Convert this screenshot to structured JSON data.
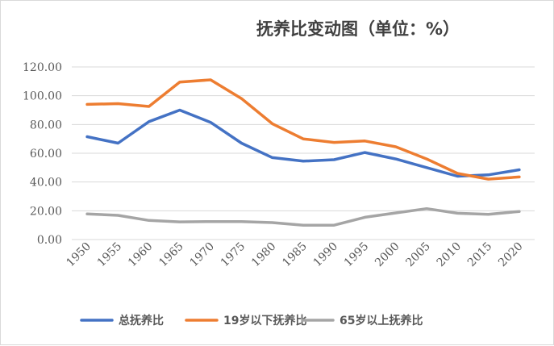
{
  "chart_data": {
    "type": "line",
    "title": "抚养比变动图（单位：%）",
    "categories": [
      "1950",
      "1955",
      "1960",
      "1965",
      "1970",
      "1975",
      "1980",
      "1985",
      "1990",
      "1995",
      "2000",
      "2005",
      "2010",
      "2015",
      "2020"
    ],
    "ylim": [
      0,
      120
    ],
    "yticks": [
      "0.00",
      "20.00",
      "40.00",
      "60.00",
      "80.00",
      "100.00",
      "120.00"
    ],
    "grid": true,
    "legend_position": "bottom",
    "series": [
      {
        "name": "总抚养比",
        "color": "#4472c4",
        "values": [
          71.5,
          67.0,
          82.0,
          90.0,
          81.5,
          67.0,
          57.0,
          54.5,
          55.5,
          60.5,
          56.0,
          50.0,
          44.0,
          45.0,
          48.5
        ]
      },
      {
        "name": "19岁以下抚养比",
        "color": "#ed7d31",
        "values": [
          94.0,
          94.5,
          92.5,
          109.5,
          111.0,
          98.0,
          80.5,
          70.0,
          67.5,
          68.5,
          64.5,
          56.0,
          46.0,
          42.0,
          43.5
        ]
      },
      {
        "name": "65岁以上抚养比",
        "color": "#a5a5a5",
        "values": [
          17.8,
          16.8,
          13.3,
          12.3,
          12.5,
          12.5,
          11.8,
          10.0,
          10.0,
          15.5,
          18.5,
          21.5,
          18.3,
          17.5,
          19.5
        ]
      }
    ]
  }
}
